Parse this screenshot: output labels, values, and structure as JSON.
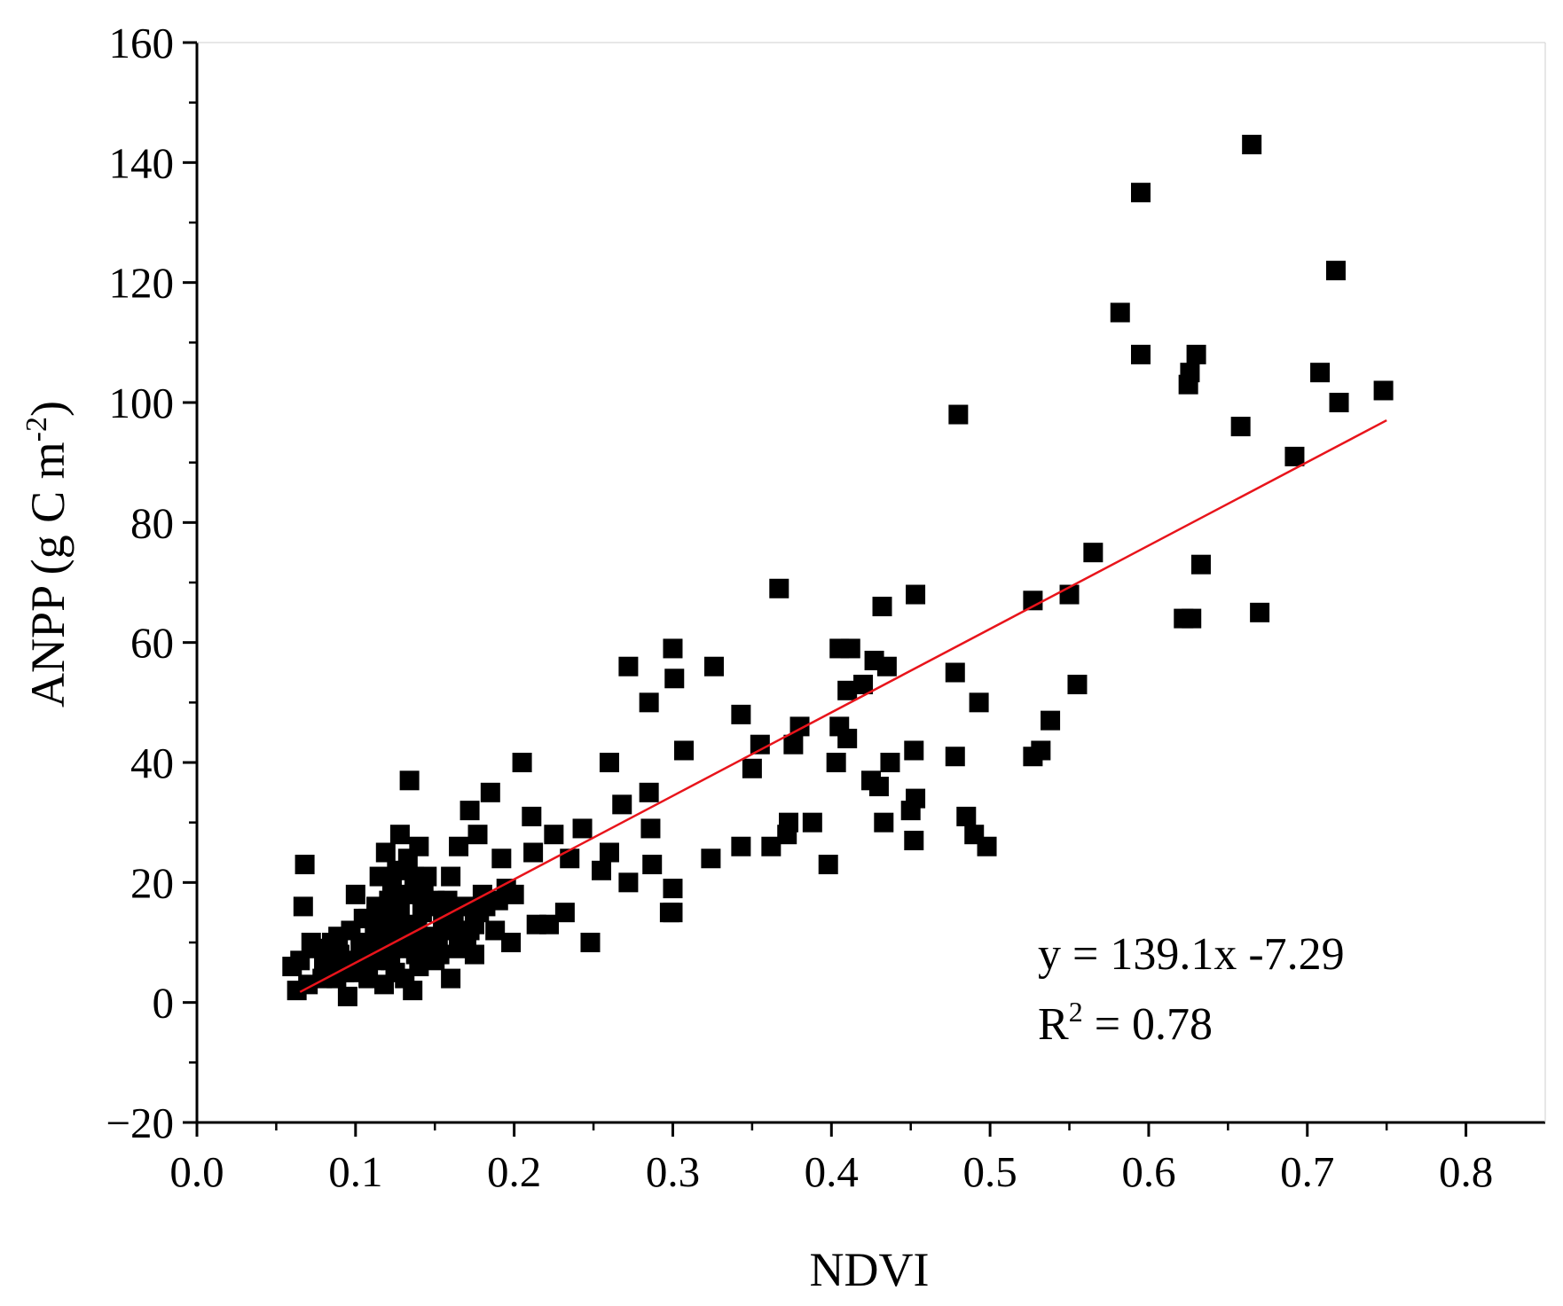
{
  "chart_data": {
    "type": "scatter",
    "title": "",
    "xlabel": "NDVI",
    "ylabel_main": "ANPP (g C m",
    "ylabel_sup": "-2",
    "ylabel_end": ")",
    "xlim": [
      0.0,
      0.85
    ],
    "ylim": [
      -20,
      160
    ],
    "xticks": [
      0.0,
      0.1,
      0.2,
      0.3,
      0.4,
      0.5,
      0.6,
      0.7,
      0.8
    ],
    "xtick_labels": [
      "0.0",
      "0.1",
      "0.2",
      "0.3",
      "0.4",
      "0.5",
      "0.6",
      "0.7",
      "0.8"
    ],
    "yticks": [
      -20,
      0,
      20,
      40,
      60,
      80,
      100,
      120,
      140,
      160
    ],
    "ytick_labels": [
      "−20",
      "0",
      "20",
      "40",
      "60",
      "80",
      "100",
      "120",
      "140",
      "160"
    ],
    "grid": false,
    "marker": "square",
    "marker_color": "#000000",
    "fit_line": {
      "slope": 139.1,
      "intercept": -7.29,
      "x_range": [
        0.065,
        0.75
      ],
      "color": "#e8141b"
    },
    "equation_text": "y = 139.1x -7.29",
    "r2_label": "R",
    "r2_sup": "2",
    "r2_value": " = 0.78",
    "points": [
      [
        0.665,
        143
      ],
      [
        0.595,
        135
      ],
      [
        0.718,
        122
      ],
      [
        0.582,
        115
      ],
      [
        0.595,
        108
      ],
      [
        0.63,
        108
      ],
      [
        0.626,
        105
      ],
      [
        0.625,
        103
      ],
      [
        0.708,
        105
      ],
      [
        0.72,
        100
      ],
      [
        0.748,
        102
      ],
      [
        0.658,
        96
      ],
      [
        0.692,
        91
      ],
      [
        0.48,
        98
      ],
      [
        0.565,
        75
      ],
      [
        0.633,
        73
      ],
      [
        0.67,
        65
      ],
      [
        0.622,
        64
      ],
      [
        0.627,
        64
      ],
      [
        0.55,
        68
      ],
      [
        0.527,
        67
      ],
      [
        0.555,
        53
      ],
      [
        0.538,
        47
      ],
      [
        0.532,
        42
      ],
      [
        0.527,
        41
      ],
      [
        0.453,
        68
      ],
      [
        0.432,
        66
      ],
      [
        0.367,
        69
      ],
      [
        0.478,
        55
      ],
      [
        0.493,
        50
      ],
      [
        0.478,
        41
      ],
      [
        0.485,
        31
      ],
      [
        0.49,
        28
      ],
      [
        0.498,
        26
      ],
      [
        0.452,
        27
      ],
      [
        0.453,
        34
      ],
      [
        0.45,
        32
      ],
      [
        0.452,
        42
      ],
      [
        0.437,
        40
      ],
      [
        0.43,
        36
      ],
      [
        0.433,
        30
      ],
      [
        0.425,
        37
      ],
      [
        0.435,
        56
      ],
      [
        0.427,
        57
      ],
      [
        0.42,
        53
      ],
      [
        0.412,
        59
      ],
      [
        0.405,
        59
      ],
      [
        0.41,
        52
      ],
      [
        0.41,
        44
      ],
      [
        0.405,
        46
      ],
      [
        0.403,
        40
      ],
      [
        0.38,
        46
      ],
      [
        0.376,
        43
      ],
      [
        0.373,
        30
      ],
      [
        0.372,
        28
      ],
      [
        0.388,
        30
      ],
      [
        0.398,
        23
      ],
      [
        0.362,
        26
      ],
      [
        0.355,
        43
      ],
      [
        0.35,
        39
      ],
      [
        0.343,
        48
      ],
      [
        0.343,
        26
      ],
      [
        0.326,
        56
      ],
      [
        0.324,
        24
      ],
      [
        0.307,
        42
      ],
      [
        0.3,
        59
      ],
      [
        0.301,
        54
      ],
      [
        0.285,
        50
      ],
      [
        0.285,
        35
      ],
      [
        0.286,
        29
      ],
      [
        0.287,
        23
      ],
      [
        0.3,
        19
      ],
      [
        0.3,
        15
      ],
      [
        0.298,
        15
      ],
      [
        0.272,
        56
      ],
      [
        0.26,
        40
      ],
      [
        0.268,
        33
      ],
      [
        0.272,
        20
      ],
      [
        0.26,
        25
      ],
      [
        0.255,
        22
      ],
      [
        0.248,
        10
      ],
      [
        0.243,
        29
      ],
      [
        0.235,
        24
      ],
      [
        0.232,
        15
      ],
      [
        0.225,
        28
      ],
      [
        0.222,
        13
      ],
      [
        0.214,
        13
      ],
      [
        0.212,
        25
      ],
      [
        0.211,
        31
      ],
      [
        0.205,
        40
      ],
      [
        0.2,
        18
      ],
      [
        0.198,
        10
      ],
      [
        0.195,
        19
      ],
      [
        0.192,
        24
      ],
      [
        0.188,
        12
      ],
      [
        0.185,
        35
      ],
      [
        0.18,
        18
      ],
      [
        0.177,
        28
      ],
      [
        0.175,
        8
      ],
      [
        0.172,
        32
      ],
      [
        0.168,
        10
      ],
      [
        0.165,
        26
      ],
      [
        0.162,
        15
      ],
      [
        0.16,
        21
      ],
      [
        0.16,
        4
      ],
      [
        0.155,
        12
      ],
      [
        0.15,
        17
      ],
      [
        0.147,
        9
      ],
      [
        0.145,
        21
      ],
      [
        0.14,
        26
      ],
      [
        0.138,
        8
      ],
      [
        0.136,
        2
      ],
      [
        0.134,
        37
      ],
      [
        0.13,
        13
      ],
      [
        0.128,
        28
      ],
      [
        0.125,
        5
      ],
      [
        0.123,
        19
      ],
      [
        0.12,
        10
      ],
      [
        0.118,
        3
      ],
      [
        0.115,
        21
      ],
      [
        0.112,
        7
      ],
      [
        0.108,
        14
      ],
      [
        0.105,
        9
      ],
      [
        0.1,
        18
      ],
      [
        0.1,
        5
      ],
      [
        0.097,
        12
      ],
      [
        0.095,
        1
      ],
      [
        0.09,
        8
      ],
      [
        0.088,
        4
      ],
      [
        0.085,
        10
      ],
      [
        0.08,
        6
      ],
      [
        0.077,
        9
      ],
      [
        0.072,
        10
      ],
      [
        0.07,
        3
      ],
      [
        0.068,
        23
      ],
      [
        0.067,
        16
      ],
      [
        0.065,
        7
      ],
      [
        0.063,
        2
      ],
      [
        0.06,
        6
      ],
      [
        0.11,
        8
      ],
      [
        0.118,
        14
      ],
      [
        0.125,
        12
      ],
      [
        0.132,
        18
      ],
      [
        0.14,
        6
      ],
      [
        0.145,
        11
      ],
      [
        0.15,
        7
      ],
      [
        0.155,
        14
      ],
      [
        0.165,
        9
      ],
      [
        0.172,
        12
      ],
      [
        0.178,
        15
      ],
      [
        0.115,
        11
      ],
      [
        0.122,
        7
      ],
      [
        0.128,
        16
      ],
      [
        0.135,
        10
      ],
      [
        0.142,
        15
      ],
      [
        0.108,
        4
      ],
      [
        0.113,
        16
      ],
      [
        0.119,
        25
      ],
      [
        0.126,
        22
      ],
      [
        0.131,
        4
      ],
      [
        0.137,
        21
      ],
      [
        0.143,
        18
      ],
      [
        0.152,
        10
      ],
      [
        0.158,
        17
      ],
      [
        0.103,
        10
      ],
      [
        0.098,
        7
      ],
      [
        0.093,
        5
      ],
      [
        0.089,
        11
      ],
      [
        0.083,
        7
      ],
      [
        0.079,
        4
      ],
      [
        0.105,
        14
      ],
      [
        0.112,
        12
      ],
      [
        0.116,
        9
      ],
      [
        0.121,
        17
      ],
      [
        0.127,
        9
      ],
      [
        0.133,
        24
      ],
      [
        0.139,
        12
      ],
      [
        0.146,
        16
      ],
      [
        0.153,
        8
      ],
      [
        0.163,
        12
      ],
      [
        0.17,
        10
      ],
      [
        0.182,
        16
      ],
      [
        0.19,
        17
      ],
      [
        0.17,
        16
      ],
      [
        0.175,
        13
      ]
    ]
  }
}
